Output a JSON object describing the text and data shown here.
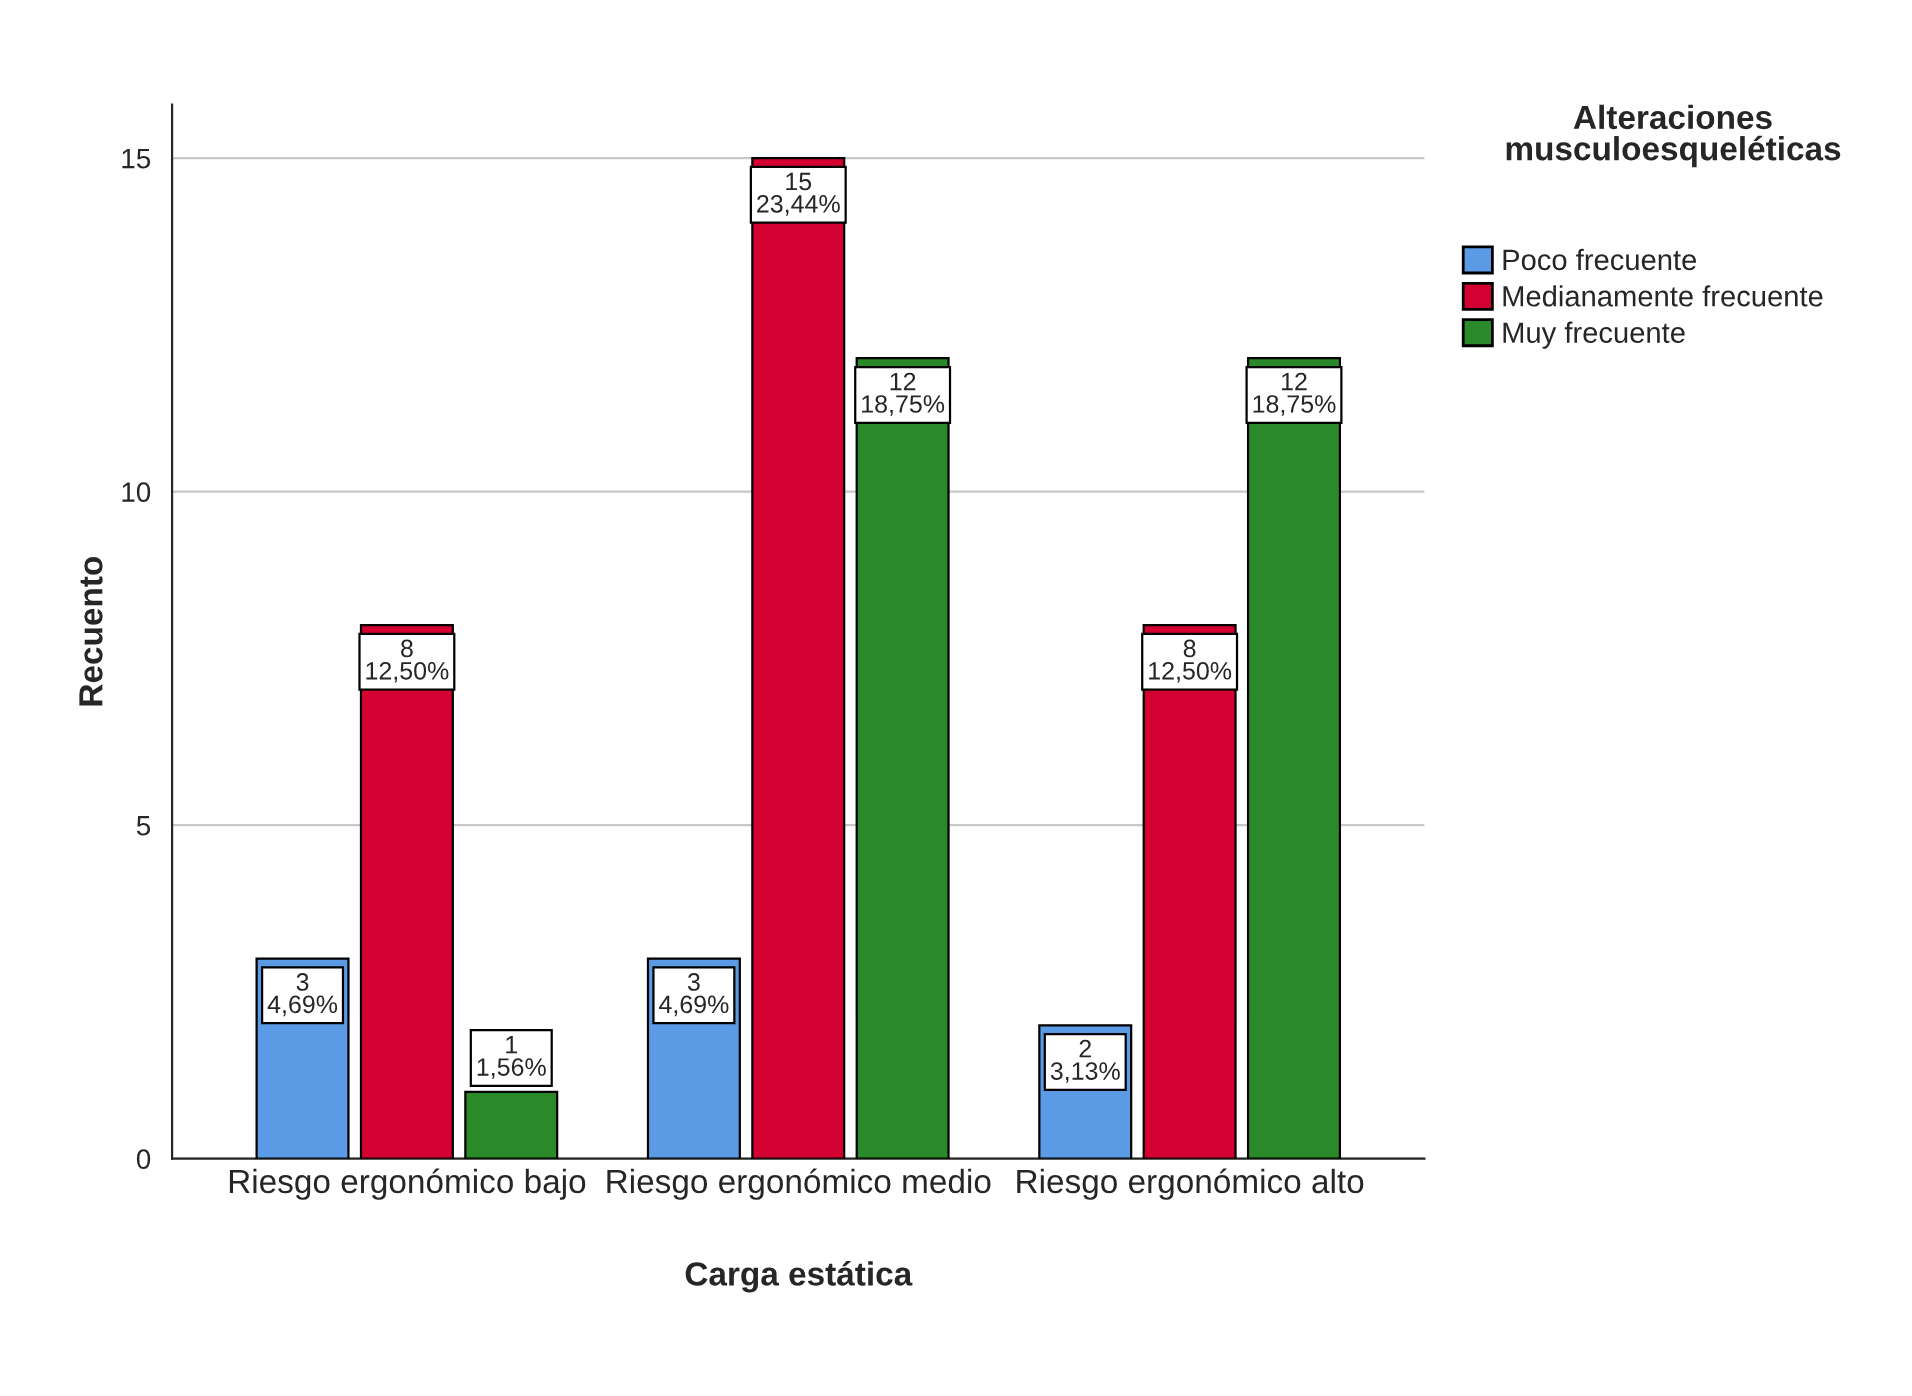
{
  "chart_data": {
    "type": "bar",
    "xlabel": "Carga estática",
    "ylabel": "Recuento",
    "legend_title": "Alteraciones musculoesqueléticas",
    "categories": [
      "Riesgo ergonómico bajo",
      "Riesgo ergonómico medio",
      "Riesgo ergonómico alto"
    ],
    "series": [
      {
        "name": "Poco frecuente",
        "color": "#5b9be6",
        "values": [
          3,
          3,
          2
        ],
        "value_labels": [
          "3\n4,69%",
          "3\n4,69%",
          "2\n3,13%"
        ]
      },
      {
        "name": "Medianamente frecuente",
        "color": "#d50032",
        "values": [
          8,
          15,
          8
        ],
        "value_labels": [
          "8\n12,50%",
          "15\n23,44%",
          "8\n12,50%"
        ]
      },
      {
        "name": "Muy frecuente",
        "color": "#2a8a2a",
        "values": [
          1,
          12,
          12
        ],
        "value_labels": [
          "1\n1,56%",
          "12\n18,75%",
          "12\n18,75%"
        ]
      }
    ],
    "ylim": [
      0,
      15.8
    ],
    "yticks": [
      0,
      5,
      10,
      15
    ],
    "grid": "y",
    "legend": "top right"
  }
}
